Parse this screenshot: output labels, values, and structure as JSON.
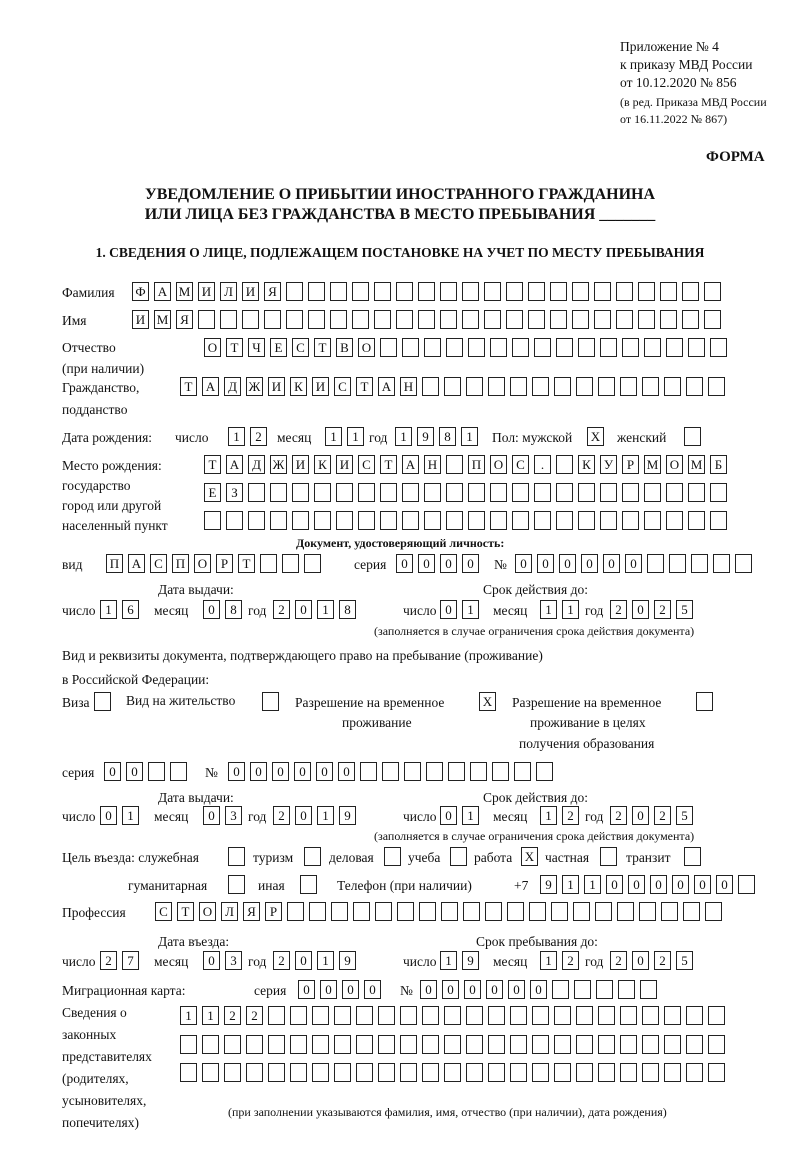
{
  "header": {
    "line1": "Приложение № 4",
    "line2": "к приказу МВД России",
    "line3": "от 10.12.2020 № 856",
    "line4": "(в ред. Приказа МВД России",
    "line5": "от 16.11.2022 № 867)",
    "forma": "ФОРМА"
  },
  "title": {
    "line1": "УВЕДОМЛЕНИЕ О ПРИБЫТИИ ИНОСТРАННОГО ГРАЖДАНИНА",
    "line2": "ИЛИ ЛИЦА БЕЗ ГРАЖДАНСТВА В МЕСТО ПРЕБЫВАНИЯ _______"
  },
  "section1": "1. СВЕДЕНИЯ О ЛИЦЕ, ПОДЛЕЖАЩЕМ ПОСТАНОВКЕ НА УЧЕТ ПО МЕСТУ ПРЕБЫВАНИЯ",
  "labels": {
    "surname": "Фамилия",
    "name": "Имя",
    "patronymic": "Отчество",
    "patronymic2": "(при наличии)",
    "citizenship": "Гражданство,",
    "citizenship2": "подданство",
    "birth_date": "Дата рождения:",
    "day": "число",
    "month": "месяц",
    "year": "год",
    "sex": "Пол: мужской",
    "female": "женский",
    "birthplace1": "Место рождения:",
    "birthplace2": "государство",
    "birthplace3": "город или другой",
    "birthplace4": "населенный пункт",
    "id_doc": "Документ, удостоверяющий личность:",
    "kind": "вид",
    "series": "серия",
    "number": "№",
    "issue_date": "Дата выдачи:",
    "valid_until": "Срок действия до:",
    "validity_note": "(заполняется в случае ограничения срока действия документа)",
    "stay_doc1": "Вид и реквизиты документа, подтверждающего право на пребывание (проживание)",
    "stay_doc2": "в Российской Федерации:",
    "visa": "Виза",
    "residence": "Вид на жительство",
    "temp1": "Разрешение на временное",
    "temp2": "проживание",
    "edu1": "Разрешение на временное",
    "edu2": "проживание в целях",
    "edu3": "получения образования",
    "purpose": "Цель въезда: служебная",
    "tourism": "туризм",
    "business": "деловая",
    "study": "учеба",
    "work": "работа",
    "private": "частная",
    "transit": "транзит",
    "humanitarian": "гуманитарная",
    "other": "иная",
    "phone": "Телефон (при наличии)",
    "phone_prefix": "+7",
    "profession": "Профессия",
    "entry_date": "Дата въезда:",
    "stay_until": "Срок пребывания до:",
    "migration_card": "Миграционная карта:",
    "reps1": "Сведения о",
    "reps2": "законных",
    "reps3": "представителях",
    "reps4": "(родителях,",
    "reps5": "усыновителях,",
    "reps6": "попечителях)",
    "reps_note": "(при заполнении указываются фамилия, имя, отчество (при наличии), дата рождения)"
  },
  "fields": {
    "surname": "ФАМИЛИЯ",
    "name": "ИМЯ",
    "patronymic": "ОТЧЕСТВО",
    "citizenship": "ТАДЖИКИСТАН",
    "birth_day": "12",
    "birth_month": "11",
    "birth_year": "1981",
    "male": "X",
    "female": "",
    "birthplace_row1": "ТАДЖИКИСТАН ПОС. КУРМОМБ",
    "birthplace_row2": "ЕЗ",
    "birthplace_row3": "",
    "id_kind": "ПАСПОРТ",
    "id_series": "0000",
    "id_number": "000000",
    "id_issue_day": "16",
    "id_issue_month": "08",
    "id_issue_year": "2018",
    "id_valid_day": "01",
    "id_valid_month": "11",
    "id_valid_year": "2025",
    "visa": "",
    "residence": "",
    "temp_residence": "X",
    "edu_residence": "",
    "stay_series": "00",
    "stay_number": "000000",
    "stay_issue_day": "01",
    "stay_issue_month": "03",
    "stay_issue_year": "2019",
    "stay_valid_day": "01",
    "stay_valid_month": "12",
    "stay_valid_year": "2025",
    "p_official": "",
    "p_tourism": "",
    "p_business": "",
    "p_study": "",
    "p_work": "X",
    "p_private": "",
    "p_transit": "",
    "p_humanitarian": "",
    "p_other": "",
    "phone": "911000000",
    "profession": "СТОЛЯР",
    "entry_day": "27",
    "entry_month": "03",
    "entry_year": "2019",
    "stay_day": "19",
    "stay_month": "12",
    "stay_year": "2025",
    "mc_series": "0000",
    "mc_number": "000000",
    "reps_row1": "1122",
    "reps_row2": "",
    "reps_row3": ""
  }
}
